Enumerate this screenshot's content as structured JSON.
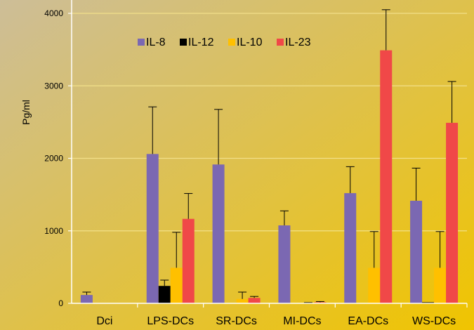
{
  "chart_data": {
    "type": "bar",
    "title": "",
    "xlabel": "",
    "ylabel": "Pg/ml",
    "ylim": [
      0,
      4000
    ],
    "yticks": [
      0,
      1000,
      2000,
      3000,
      4000
    ],
    "categories": [
      "Dci",
      "LPS-DCs",
      "SR-DCs",
      "MI-DCs",
      "EA-DCs",
      "WS-DCs"
    ],
    "series": [
      {
        "name": "IL-8",
        "color": "#7B68B2",
        "values": [
          115,
          2060,
          1915,
          1075,
          1520,
          1415
        ],
        "errors": [
          40,
          650,
          760,
          200,
          365,
          450
        ]
      },
      {
        "name": "IL-12",
        "color": "#000000",
        "values": [
          0,
          240,
          0,
          0,
          0,
          15
        ],
        "errors": [
          0,
          80,
          0,
          0,
          0,
          0
        ]
      },
      {
        "name": "IL-10",
        "color": "#FFC000",
        "values": [
          0,
          490,
          60,
          0,
          490,
          490
        ],
        "errors": [
          0,
          490,
          95,
          10,
          500,
          500
        ]
      },
      {
        "name": "IL-23",
        "color": "#F04848",
        "values": [
          0,
          1165,
          75,
          15,
          3490,
          2490
        ],
        "errors": [
          0,
          350,
          20,
          10,
          560,
          570
        ]
      }
    ],
    "legend_position": "top-center",
    "grid": true,
    "error_bars": true,
    "error_bar_color": "#000000",
    "grid_color": "#F2E08A",
    "axis_color": "#FFFFFF",
    "background_gradient": [
      "#CDBE98",
      "#F0C400"
    ]
  }
}
